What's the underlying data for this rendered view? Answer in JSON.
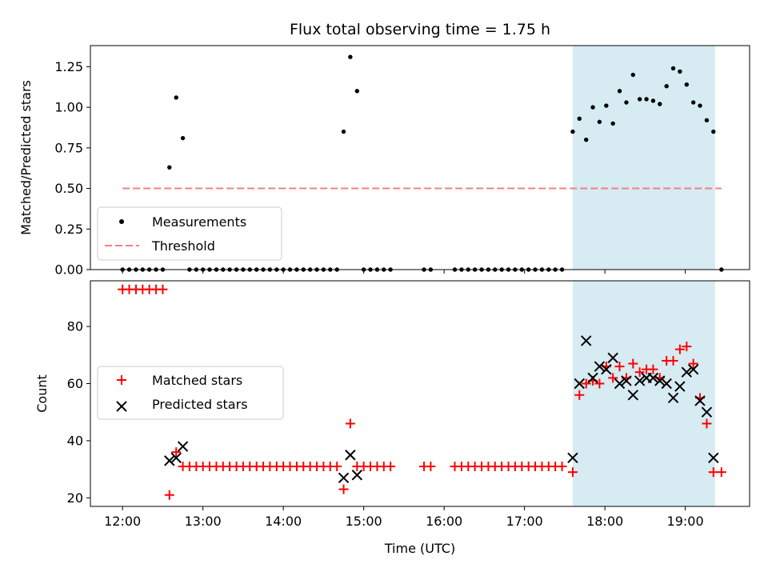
{
  "chart_data": [
    {
      "type": "scatter",
      "title": "Flux total observing time = 1.75 h",
      "xlabel": "",
      "ylabel": "Matched/Predicted stars",
      "xlim": [
        11.6,
        19.8
      ],
      "ylim": [
        0.0,
        1.38
      ],
      "yticks": [
        "0.00",
        "0.25",
        "0.50",
        "0.75",
        "1.00",
        "1.25"
      ],
      "grid": false,
      "legend_position": "lower-left",
      "highlight_span": {
        "x0": 17.6,
        "x1": 19.37,
        "color": "#add8e6"
      },
      "series": [
        {
          "name": "Measurements",
          "marker": "dot",
          "color": "#000000",
          "x": [
            12.0,
            12.083,
            12.167,
            12.25,
            12.333,
            12.417,
            12.5,
            12.583,
            12.667,
            12.75,
            12.833,
            12.917,
            13.0,
            13.083,
            13.167,
            13.25,
            13.333,
            13.417,
            13.5,
            13.583,
            13.667,
            13.75,
            13.833,
            13.917,
            14.0,
            14.083,
            14.167,
            14.25,
            14.333,
            14.417,
            14.5,
            14.583,
            14.667,
            14.75,
            14.833,
            14.917,
            15.0,
            15.083,
            15.167,
            15.25,
            15.333,
            15.75,
            15.833,
            16.133,
            16.217,
            16.3,
            16.383,
            16.467,
            16.55,
            16.633,
            16.717,
            16.8,
            16.883,
            16.967,
            17.05,
            17.133,
            17.217,
            17.3,
            17.383,
            17.467,
            17.6,
            17.683,
            17.767,
            17.85,
            17.933,
            18.017,
            18.1,
            18.183,
            18.267,
            18.35,
            18.433,
            18.517,
            18.6,
            18.683,
            18.767,
            18.85,
            18.933,
            19.017,
            19.1,
            19.183,
            19.267,
            19.35,
            19.45
          ],
          "y": [
            0,
            0,
            0,
            0,
            0,
            0,
            0,
            0.63,
            1.06,
            0.81,
            0,
            0,
            0,
            0,
            0,
            0,
            0,
            0,
            0,
            0,
            0,
            0,
            0,
            0,
            0,
            0,
            0,
            0,
            0,
            0,
            0,
            0,
            0,
            0.85,
            1.31,
            1.1,
            0,
            0,
            0,
            0,
            0,
            0,
            0,
            0,
            0,
            0,
            0,
            0,
            0,
            0,
            0,
            0,
            0,
            0,
            0,
            0,
            0,
            0,
            0,
            0,
            0.85,
            0.93,
            0.8,
            1.0,
            0.91,
            1.01,
            0.9,
            1.1,
            1.03,
            1.2,
            1.05,
            1.05,
            1.04,
            1.02,
            1.13,
            1.24,
            1.22,
            1.14,
            1.03,
            1.01,
            0.92,
            0.85,
            0
          ]
        },
        {
          "name": "Threshold",
          "marker": "dashed-line",
          "color": "#f08080",
          "x": [
            12.0,
            19.45
          ],
          "y": [
            0.5,
            0.5
          ]
        }
      ]
    },
    {
      "type": "scatter",
      "title": "",
      "xlabel": "Time (UTC)",
      "ylabel": "Count",
      "xlim": [
        11.6,
        19.8
      ],
      "ylim": [
        17,
        96
      ],
      "xticks": [
        "12:00",
        "13:00",
        "14:00",
        "15:00",
        "16:00",
        "17:00",
        "18:00",
        "19:00"
      ],
      "xtick_values": [
        12,
        13,
        14,
        15,
        16,
        17,
        18,
        19
      ],
      "yticks": [
        "20",
        "40",
        "60",
        "80"
      ],
      "grid": false,
      "legend_position": "center-left",
      "highlight_span": {
        "x0": 17.6,
        "x1": 19.37,
        "color": "#add8e6"
      },
      "series": [
        {
          "name": "Matched stars",
          "marker": "plus",
          "color": "#ff0000",
          "x": [
            12.0,
            12.083,
            12.167,
            12.25,
            12.333,
            12.417,
            12.5,
            12.583,
            12.667,
            12.75,
            12.833,
            12.917,
            13.0,
            13.083,
            13.167,
            13.25,
            13.333,
            13.417,
            13.5,
            13.583,
            13.667,
            13.75,
            13.833,
            13.917,
            14.0,
            14.083,
            14.167,
            14.25,
            14.333,
            14.417,
            14.5,
            14.583,
            14.667,
            14.75,
            14.833,
            14.917,
            15.0,
            15.083,
            15.167,
            15.25,
            15.333,
            15.75,
            15.833,
            16.133,
            16.217,
            16.3,
            16.383,
            16.467,
            16.55,
            16.633,
            16.717,
            16.8,
            16.883,
            16.967,
            17.05,
            17.133,
            17.217,
            17.3,
            17.383,
            17.467,
            17.6,
            17.683,
            17.767,
            17.85,
            17.933,
            18.017,
            18.1,
            18.183,
            18.267,
            18.35,
            18.433,
            18.517,
            18.6,
            18.683,
            18.767,
            18.85,
            18.933,
            19.017,
            19.1,
            19.183,
            19.267,
            19.35,
            19.45
          ],
          "y": [
            93,
            93,
            93,
            93,
            93,
            93,
            93,
            21,
            36,
            31,
            31,
            31,
            31,
            31,
            31,
            31,
            31,
            31,
            31,
            31,
            31,
            31,
            31,
            31,
            31,
            31,
            31,
            31,
            31,
            31,
            31,
            31,
            31,
            23,
            46,
            31,
            31,
            31,
            31,
            31,
            31,
            31,
            31,
            31,
            31,
            31,
            31,
            31,
            31,
            31,
            31,
            31,
            31,
            31,
            31,
            31,
            31,
            31,
            31,
            31,
            29,
            56,
            60,
            61,
            60,
            66,
            62,
            66,
            62,
            67,
            64,
            65,
            65,
            62,
            68,
            68,
            72,
            73,
            67,
            55,
            46,
            29,
            29
          ]
        },
        {
          "name": "Predicted stars",
          "marker": "x",
          "color": "#000000",
          "x": [
            12.583,
            12.667,
            12.75,
            14.75,
            14.833,
            14.917,
            17.6,
            17.683,
            17.767,
            17.85,
            17.933,
            18.017,
            18.1,
            18.183,
            18.267,
            18.35,
            18.433,
            18.517,
            18.6,
            18.683,
            18.767,
            18.85,
            18.933,
            19.017,
            19.1,
            19.183,
            19.267,
            19.35
          ],
          "y": [
            33,
            34,
            38,
            27,
            35,
            28,
            34,
            60,
            75,
            62,
            66,
            65,
            69,
            60,
            61,
            56,
            61,
            62,
            62,
            61,
            60,
            55,
            59,
            64,
            65,
            54,
            50,
            34
          ]
        }
      ]
    }
  ]
}
